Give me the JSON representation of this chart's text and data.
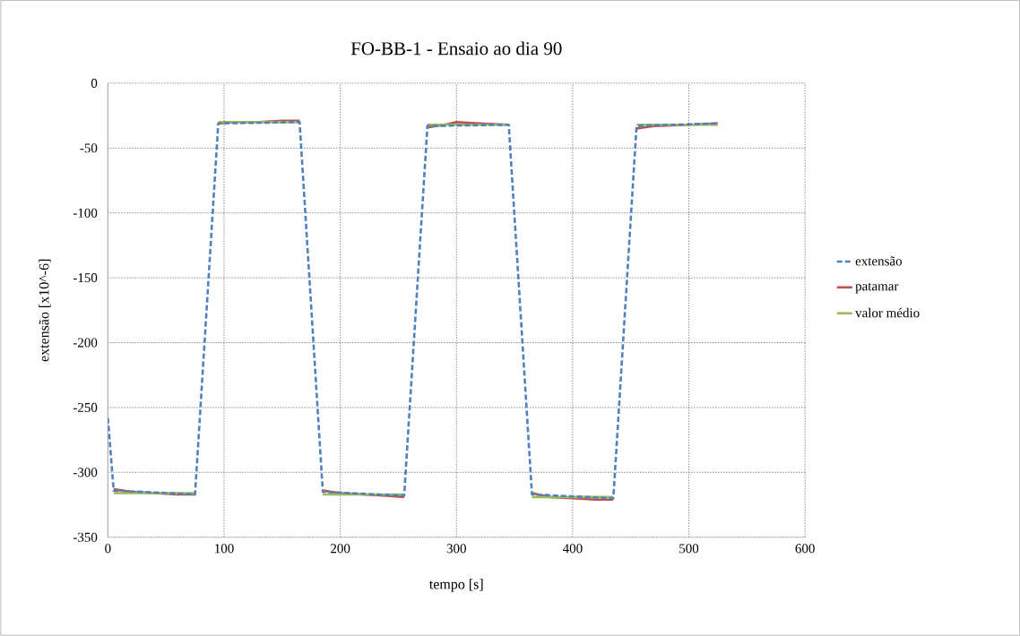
{
  "chart_data": {
    "type": "line",
    "title": "FO-BB-1 - Ensaio ao dia 90",
    "xlabel": "tempo [s]",
    "ylabel": "extensão [x10^-6]",
    "xlim": [
      0,
      600
    ],
    "xticks": [
      0,
      100,
      200,
      300,
      400,
      500,
      600
    ],
    "ylim": [
      -350,
      0
    ],
    "yticks": [
      -350,
      -300,
      -250,
      -200,
      -150,
      -100,
      -50,
      0
    ],
    "grid": true,
    "legend": "right",
    "marker": "none",
    "series": [
      {
        "name": "extensão",
        "color": "#4f81bd",
        "line_style": "dashed",
        "x": [
          0,
          5,
          75,
          95,
          165,
          185,
          255,
          275,
          345,
          365,
          435,
          455,
          525
        ],
        "values": [
          -258,
          -314,
          -317,
          -31,
          -30,
          -315,
          -318,
          -33,
          -32,
          -317,
          -320,
          -33,
          -31
        ]
      },
      {
        "name": "patamar",
        "color": "#c0504d",
        "line_style": "solid",
        "x": [
          5,
          20,
          40,
          60,
          75,
          80,
          95,
          110,
          130,
          150,
          165,
          170,
          185,
          200,
          220,
          240,
          255,
          260,
          275,
          290,
          300,
          320,
          345,
          350,
          365,
          380,
          400,
          420,
          435,
          440,
          455,
          470,
          500,
          525
        ],
        "values": [
          -313,
          -315,
          -316,
          -317,
          -317,
          null,
          -31,
          -30,
          -30,
          -29,
          -29,
          null,
          -314,
          -316,
          -317,
          -318,
          -319,
          null,
          -34,
          -32,
          -30,
          -31,
          -32,
          null,
          -316,
          -319,
          -320,
          -321,
          -321,
          null,
          -35,
          -33,
          -32,
          -31
        ]
      },
      {
        "name": "valor médio",
        "color": "#9bbb59",
        "line_style": "solid",
        "x": [
          5,
          75,
          80,
          95,
          165,
          170,
          185,
          255,
          260,
          275,
          345,
          350,
          365,
          435,
          440,
          455,
          525
        ],
        "values": [
          -316,
          -316,
          null,
          -30,
          -30,
          null,
          -317,
          -317,
          null,
          -32,
          -32,
          null,
          -319,
          -319,
          null,
          -32,
          -32
        ]
      }
    ]
  }
}
